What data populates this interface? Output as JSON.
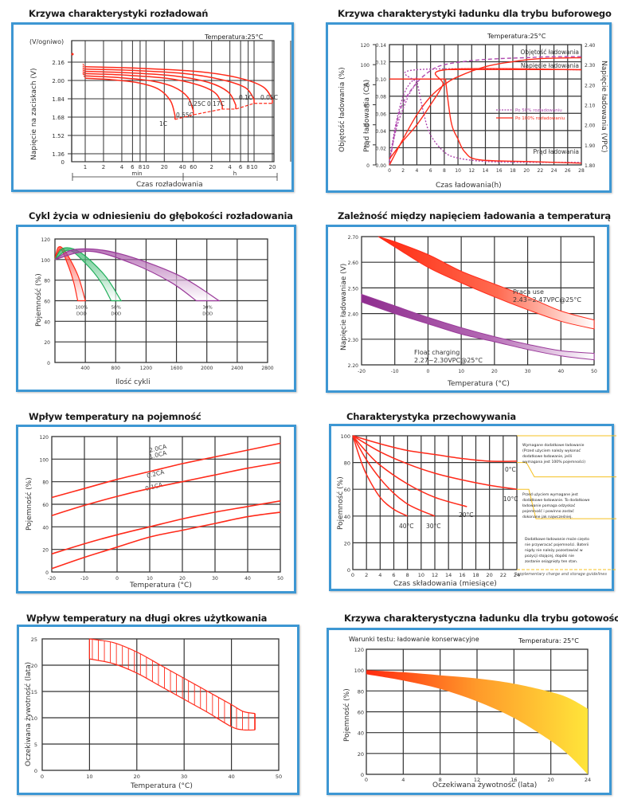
{
  "colors": {
    "panel_border": "#3d97d3",
    "grid": "#333333",
    "red": "#ff2a1a",
    "purple": "#b04ab0",
    "green": "#1fae5a",
    "violet": "#9a3a9a",
    "orange_start": "#ff2a10",
    "yellow_end": "#ffe53a",
    "note_line": "#f5c020"
  },
  "chart_data": [
    {
      "id": "discharge",
      "type": "line",
      "title": "Krzywa charakterystyki rozładowań",
      "annotation": "Temperatura:25°C",
      "ylabel": "Napięcie na zaciskach (V)",
      "yunit": "(V/ogniwo)",
      "xlabel": "Czas rozładowania",
      "yticks": [
        "2.16",
        "2.00",
        "1.84",
        "1.68",
        "1.52",
        "1.36",
        "0"
      ],
      "xticks_min": [
        "1",
        "2",
        "4",
        "6",
        "8",
        "10",
        "20",
        "40",
        "60"
      ],
      "xticks_h": [
        "2",
        "4",
        "6",
        "8",
        "10",
        "20"
      ],
      "xgroup_labels": [
        "min",
        "h"
      ],
      "series": [
        {
          "name": "1C",
          "end_time": "30 min",
          "start_v": 2.02,
          "end_v": 1.66
        },
        {
          "name": "0.55C",
          "end_time": "60 min",
          "start_v": 2.04,
          "end_v": 1.7
        },
        {
          "name": "0.25C",
          "end_time": "3 h",
          "start_v": 2.06,
          "end_v": 1.75
        },
        {
          "name": "0.17C",
          "end_time": "5 h",
          "start_v": 2.08,
          "end_v": 1.75
        },
        {
          "name": "0.1C",
          "end_time": "10 h",
          "start_v": 2.1,
          "end_v": 1.8
        },
        {
          "name": "0.05C",
          "end_time": "20 h",
          "start_v": 2.12,
          "end_v": 1.8
        }
      ]
    },
    {
      "id": "buffer",
      "type": "line",
      "title": "Krzywa charakterystyki ładunku dla trybu buforowego",
      "annotation": "Temperatura:25°C",
      "xlabel": "Czas ładowania(h)",
      "ylabel_left1": "Objętość ładowania (%)",
      "ylabel_left2": "Prąd ładowania (CA)",
      "ylabel_right": "Napięcie ładowania (VPC)",
      "xticks": [
        "0",
        "2",
        "4",
        "6",
        "8",
        "10",
        "12",
        "14",
        "16",
        "18",
        "20",
        "22",
        "24",
        "26",
        "28"
      ],
      "yticks_capacity": [
        "120",
        "100",
        "80",
        "60",
        "40",
        "20",
        "0"
      ],
      "yticks_current": [
        "0.14",
        "0.12",
        "0.10",
        "0.08",
        "0.06",
        "0.04",
        "0.02",
        "0.00"
      ],
      "yticks_voltage": [
        "2.40",
        "2.30",
        "2.20",
        "2.10",
        "2.00",
        "1.90",
        "1.80"
      ],
      "curve_labels": [
        "Objętość ładowania",
        "Napięcie ładowania",
        "Prąd ładowania"
      ],
      "legend": [
        {
          "label": "Po 50% rozładowaniu",
          "style": "dashed"
        },
        {
          "label": "Po 100% rozładowaniu",
          "style": "solid"
        }
      ],
      "series": [
        {
          "name": "Capacity 50%",
          "x": [
            0,
            1,
            2,
            4,
            6,
            8,
            12,
            16,
            20,
            24,
            28
          ],
          "y": [
            0,
            40,
            62,
            82,
            94,
            100,
            104,
            106,
            107,
            108,
            108
          ]
        },
        {
          "name": "Capacity 100%",
          "x": [
            0,
            2,
            4,
            6,
            8,
            10,
            14,
            18,
            22,
            28
          ],
          "y": [
            0,
            26,
            50,
            68,
            80,
            88,
            98,
            103,
            106,
            107
          ]
        },
        {
          "name": "Current 50%",
          "x": [
            0,
            1,
            2,
            3,
            3.9,
            4,
            5,
            6,
            8,
            10,
            14,
            20,
            28
          ],
          "y": [
            0.005,
            0.05,
            0.08,
            0.095,
            0.1,
            0.098,
            0.06,
            0.035,
            0.015,
            0.008,
            0.004,
            0.003,
            0.003
          ]
        },
        {
          "name": "Current 100%",
          "x": [
            0,
            8,
            8.2,
            9,
            10,
            11,
            13,
            20,
            28
          ],
          "y": [
            0.1,
            0.1,
            0.098,
            0.05,
            0.03,
            0.015,
            0.006,
            0.004,
            0.002
          ]
        },
        {
          "name": "Voltage 50%",
          "x": [
            0,
            1,
            2,
            3,
            3.9,
            4,
            28
          ],
          "y": [
            1.82,
            1.98,
            2.08,
            2.16,
            2.21,
            2.275,
            2.275
          ]
        },
        {
          "name": "Voltage 100%",
          "x": [
            0,
            2,
            4,
            6,
            7.8,
            8.2,
            28
          ],
          "y": [
            1.83,
            1.92,
            2.0,
            2.1,
            2.2,
            2.275,
            2.275
          ]
        }
      ]
    },
    {
      "id": "cycle_life",
      "type": "area",
      "title": "Cykl życia w odniesieniu do głębokości rozładowania",
      "xlabel": "Ilość cykli",
      "ylabel": "Pojemność (%)",
      "xticks": [
        "400",
        "800",
        "1200",
        "1600",
        "2000",
        "2400",
        "2800"
      ],
      "yticks": [
        "120",
        "100",
        "80",
        "60",
        "40",
        "20",
        "0"
      ],
      "xlim": [
        0,
        2800
      ],
      "ylim": [
        0,
        120
      ],
      "series": [
        {
          "name": "100% DOD",
          "label": [
            "100%",
            "DOD"
          ],
          "peak": 112,
          "end_min": 300,
          "end_max": 400
        },
        {
          "name": "50% DOD",
          "label": [
            "50%",
            "DOD"
          ],
          "peak": 111,
          "end_min": 740,
          "end_max": 870
        },
        {
          "name": "30% DOD",
          "label": [
            "30%",
            "DOD"
          ],
          "peak": 110,
          "end_min": 1860,
          "end_max": 2160
        }
      ]
    },
    {
      "id": "charge_voltage_temp",
      "type": "area",
      "title": "Zależność między napięciem ładowania a temperaturą",
      "xlabel": "Temperatura (°C)",
      "ylabel": "Napięcie ładowaniae (V)",
      "xticks": [
        "-20",
        "-10",
        "0",
        "10",
        "20",
        "30",
        "40",
        "50"
      ],
      "yticks": [
        "2.70",
        "2.60",
        "2.50",
        "2.40",
        "2.30",
        "2.20"
      ],
      "xlim": [
        -20,
        50
      ],
      "ylim": [
        2.2,
        2.7
      ],
      "series": [
        {
          "name": "Praca use",
          "label": [
            "Praca  use",
            "2.43~2.47VPC@25°C"
          ],
          "x": [
            -15,
            -10,
            0,
            10,
            20,
            30,
            40,
            50
          ],
          "upper": [
            2.7,
            2.68,
            2.63,
            2.565,
            2.515,
            2.465,
            2.41,
            2.375
          ],
          "lower": [
            2.7,
            2.66,
            2.58,
            2.52,
            2.465,
            2.415,
            2.37,
            2.34
          ]
        },
        {
          "name": "Float charging",
          "label": [
            "Float charging",
            "2.27~2.30VPC@25°C"
          ],
          "x": [
            -20,
            -10,
            0,
            10,
            20,
            30,
            40,
            50
          ],
          "upper": [
            2.475,
            2.43,
            2.385,
            2.345,
            2.31,
            2.28,
            2.255,
            2.245
          ],
          "lower": [
            2.445,
            2.4,
            2.36,
            2.32,
            2.29,
            2.26,
            2.235,
            2.22
          ]
        }
      ]
    },
    {
      "id": "temp_capacity",
      "type": "line",
      "title": "Wpływ temperatury na pojemność",
      "xlabel": "Temperatura (°C)",
      "ylabel": "Pojemność (%)",
      "xticks": [
        "-20",
        "-10",
        "0",
        "10",
        "20",
        "30",
        "40",
        "50"
      ],
      "yticks": [
        "120",
        "100",
        "80",
        "60",
        "40",
        "20",
        "0"
      ],
      "xlim": [
        -20,
        50
      ],
      "ylim": [
        0,
        120
      ],
      "series": [
        {
          "name": "0.1CA",
          "x": [
            -20,
            -10,
            0,
            10,
            20,
            30,
            40,
            50
          ],
          "y": [
            66,
            74,
            82,
            89,
            96,
            102,
            108,
            114
          ]
        },
        {
          "name": "0.2CA",
          "x": [
            -20,
            -10,
            0,
            10,
            20,
            30,
            40,
            50
          ],
          "y": [
            50,
            59,
            67,
            74,
            80,
            86,
            92,
            97
          ]
        },
        {
          "name": "1.0CA",
          "x": [
            -20,
            -10,
            0,
            10,
            20,
            30,
            40,
            50
          ],
          "y": [
            16,
            25,
            33,
            40,
            47,
            53,
            58,
            63
          ]
        },
        {
          "name": "2.0CA",
          "x": [
            -20,
            -10,
            0,
            10,
            20,
            30,
            40,
            50
          ],
          "y": [
            3,
            13,
            22,
            31,
            37,
            43,
            49,
            53
          ]
        }
      ]
    },
    {
      "id": "storage",
      "type": "line",
      "title": "Charakterystyka przechowywania",
      "xlabel": "Czas składowania (miesiące)",
      "ylabel": "Pojemność (%)",
      "xticks": [
        "0",
        "2",
        "4",
        "6",
        "8",
        "10",
        "12",
        "14",
        "16",
        "18",
        "20",
        "22",
        "24"
      ],
      "yticks": [
        "100",
        "80",
        "60",
        "40",
        "20",
        "0"
      ],
      "xlim": [
        0,
        24
      ],
      "ylim": [
        0,
        100
      ],
      "series": [
        {
          "name": "0°C",
          "x": [
            0,
            4,
            8,
            12,
            16,
            20,
            24
          ],
          "y": [
            100,
            94,
            89,
            86,
            83,
            81,
            81
          ]
        },
        {
          "name": "10°C",
          "x": [
            0,
            4,
            8,
            12,
            16,
            20,
            24
          ],
          "y": [
            100,
            88,
            79,
            72,
            67,
            63,
            60
          ]
        },
        {
          "name": "20°C",
          "x": [
            0,
            2,
            4,
            8,
            12,
            16.7
          ],
          "y": [
            100,
            88,
            78,
            64,
            54,
            47
          ]
        },
        {
          "name": "30°C",
          "x": [
            0,
            2,
            4,
            6,
            8,
            10,
            12
          ],
          "y": [
            100,
            82,
            68,
            57,
            49,
            44,
            40
          ]
        },
        {
          "name": "40°C",
          "x": [
            0,
            1,
            2,
            4,
            6,
            8
          ],
          "y": [
            100,
            84,
            71,
            54,
            45,
            40
          ]
        }
      ],
      "notes": [
        "Wymagane dodatkowe ładowanie (Przed użyciem należy wykonać dodatkowe ładowanie, jeśli wymagana jest 100% pojemności)",
        "Przed użyciem wymagane jest dodatkowe ładowanie. To dodatkowe ładowanie pomaga odzyskać pojemność i powinno zostać dokonane jak najwcześniej.",
        "Dodatkowe ładowanie może często nie przywracać pojemności. Baterii nigdy nie należy pozostawiać w pozycji stojącej, dopóki nie zostanie osiągnięty ten stan."
      ],
      "footer_note": "Supplementary charge and storage guidelines"
    },
    {
      "id": "temp_life",
      "type": "area",
      "title": "Wpływ temperatury na długi okres użytkowania",
      "xlabel": "Temperatura (°C)",
      "ylabel": "Oczekiwana żywotność (lata)",
      "xticks": [
        "0",
        "10",
        "20",
        "30",
        "40",
        "50"
      ],
      "yticks": [
        "25",
        "20",
        "15",
        "10",
        "5",
        "0"
      ],
      "xlim": [
        0,
        50
      ],
      "ylim": [
        0,
        25
      ],
      "x": [
        10,
        15,
        20,
        25,
        30,
        35,
        40,
        42.5,
        45
      ],
      "upper": [
        25,
        24.3,
        22.5,
        20,
        17.5,
        15,
        12.5,
        11.2,
        10.8
      ],
      "lower": [
        21.2,
        20.3,
        18.5,
        16,
        13.5,
        11,
        8.3,
        7.7,
        7.7
      ]
    },
    {
      "id": "standby",
      "type": "area",
      "title": "Krzywa charakterystyczna ładunku dla trybu gotowości",
      "annotation_left": "Warunki testu: ładowanie konserwacyjne",
      "annotation_right": "Temperatura: 25°C",
      "xlabel": "Oczekiwana żywotność (lata)",
      "ylabel": "Pojemność (%)",
      "xticks": [
        "0",
        "4",
        "8",
        "12",
        "16",
        "20",
        "24"
      ],
      "yticks": [
        "120",
        "100",
        "80",
        "60",
        "40",
        "20",
        "0"
      ],
      "xlim": [
        0,
        24
      ],
      "ylim": [
        0,
        120
      ],
      "x": [
        0,
        4,
        8,
        12,
        16,
        20,
        22,
        24
      ],
      "upper": [
        100,
        98,
        95,
        92,
        87,
        79,
        73,
        63
      ],
      "lower": [
        96,
        90,
        82,
        70,
        54,
        32,
        18,
        0
      ]
    }
  ]
}
